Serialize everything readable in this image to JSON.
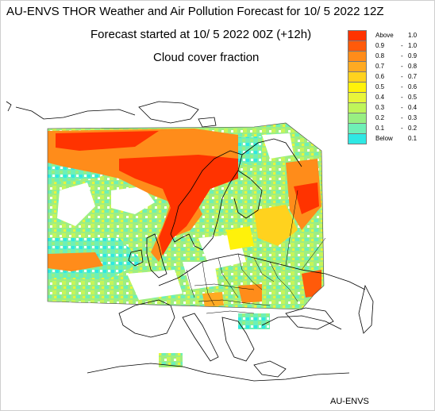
{
  "title": "AU-ENVS THOR Weather and Air Pollution Forecast for 10/ 5 2022  12Z",
  "subtitle": "Forecast started at 10/ 5 2022  00Z (+12h)",
  "variable": "Cloud cover fraction",
  "credit": "AU-ENVS",
  "legend": [
    {
      "a": "Above",
      "dash": "",
      "b": "1.0",
      "color": "#ff3300"
    },
    {
      "a": "0.9",
      "dash": "-",
      "b": "1.0",
      "color": "#ff5a0a"
    },
    {
      "a": "0.8",
      "dash": "-",
      "b": "0.9",
      "color": "#ff8c1a"
    },
    {
      "a": "0.7",
      "dash": "-",
      "b": "0.8",
      "color": "#ffaa22"
    },
    {
      "a": "0.6",
      "dash": "-",
      "b": "0.7",
      "color": "#ffd21e"
    },
    {
      "a": "0.5",
      "dash": "-",
      "b": "0.6",
      "color": "#fff20a"
    },
    {
      "a": "0.4",
      "dash": "-",
      "b": "0.5",
      "color": "#e8f53a"
    },
    {
      "a": "0.3",
      "dash": "-",
      "b": "0.4",
      "color": "#bff55a"
    },
    {
      "a": "0.2",
      "dash": "-",
      "b": "0.3",
      "color": "#98ef82"
    },
    {
      "a": "0.1",
      "dash": "-",
      "b": "0.2",
      "color": "#6ef0b6"
    },
    {
      "a": "Below",
      "dash": "",
      "b": "0.1",
      "color": "#2fe8e4"
    }
  ]
}
